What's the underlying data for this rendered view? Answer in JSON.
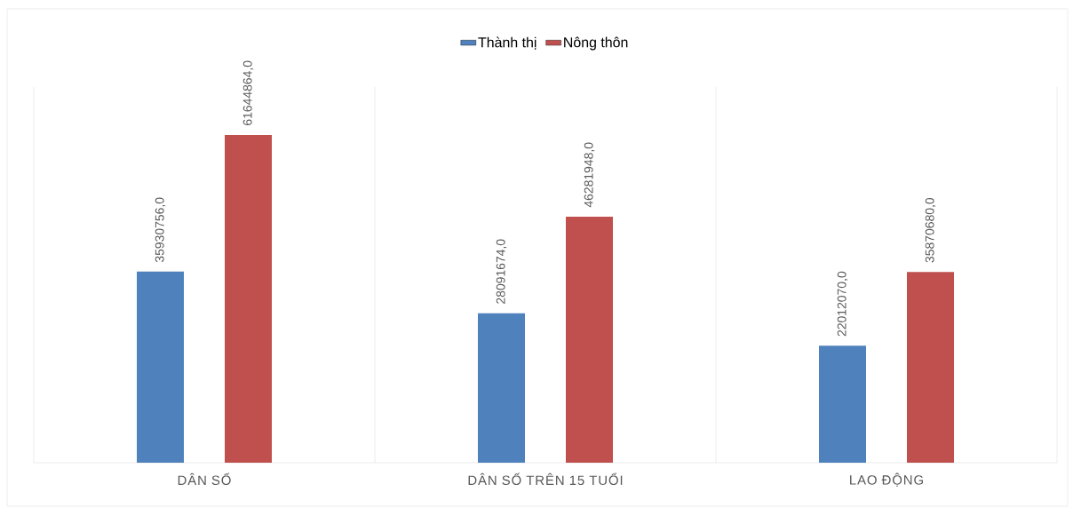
{
  "chart_data": {
    "type": "bar",
    "categories": [
      "DÂN SỐ",
      "DÂN SỐ TRÊN 15 TUỔI",
      "LAO ĐỘNG"
    ],
    "series": [
      {
        "name": "Thành thị",
        "color": "#4f81bd",
        "values": [
          35930756,
          28091674,
          22012070
        ],
        "value_labels": [
          "35930756,0",
          "28091674,0",
          "22012070,0"
        ]
      },
      {
        "name": "Nông thôn",
        "color": "#c0504d",
        "values": [
          61644864,
          46281948,
          35870680
        ],
        "value_labels": [
          "61644864,0",
          "46281948,0",
          "35870680,0"
        ]
      }
    ],
    "legend": "top",
    "grid": "x"
  }
}
